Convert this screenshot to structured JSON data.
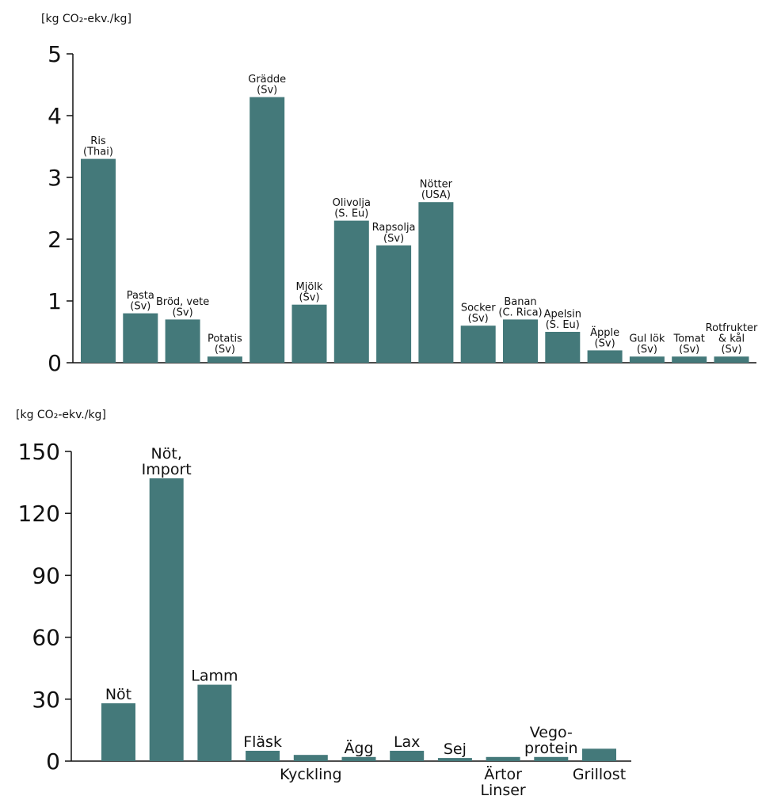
{
  "chart_data": [
    {
      "type": "bar",
      "y_label": "[kg CO₂-ekv./kg]",
      "color": "#44797a",
      "categories": [
        "Ris\n(Thai)",
        "Pasta\n(Sv)",
        "Bröd, vete\n(Sv)",
        "Potatis\n(Sv)",
        "Grädde\n(Sv)",
        "Mjölk\n(Sv)",
        "Olivolja\n(S. Eu)",
        "Rapsolja\n(Sv)",
        "Nötter\n(USA)",
        "Socker\n(Sv)",
        "Banan\n(C. Rica)",
        "Apelsin\n(S. Eu)",
        "Äpple\n(Sv)",
        "Gul lök\n(Sv)",
        "Tomat\n(Sv)",
        "Rotfrukter\n& kål\n(Sv)"
      ],
      "values": [
        3.3,
        0.8,
        0.7,
        0.1,
        4.3,
        0.94,
        2.3,
        1.9,
        2.6,
        0.6,
        0.7,
        0.5,
        0.2,
        0.1,
        0.1,
        0.1
      ],
      "ylim": [
        0,
        5
      ],
      "yticks": [
        0,
        1,
        2,
        3,
        4,
        5
      ]
    },
    {
      "type": "bar",
      "y_label": "[kg CO₂-ekv./kg]",
      "color": "#44797a",
      "categories": [
        "Nöt",
        "Nöt,\nImport",
        "Lamm",
        "Fläsk",
        "Kyckling",
        "Ägg",
        "Lax",
        "Sej",
        "Ärtor\nLinser",
        "Vego-\nprotein",
        "Grillost"
      ],
      "values": [
        28,
        137,
        37,
        5,
        3,
        2,
        5,
        1.5,
        2,
        2,
        6
      ],
      "ylim": [
        0,
        150
      ],
      "yticks": [
        0,
        30,
        60,
        90,
        120,
        150
      ]
    }
  ]
}
